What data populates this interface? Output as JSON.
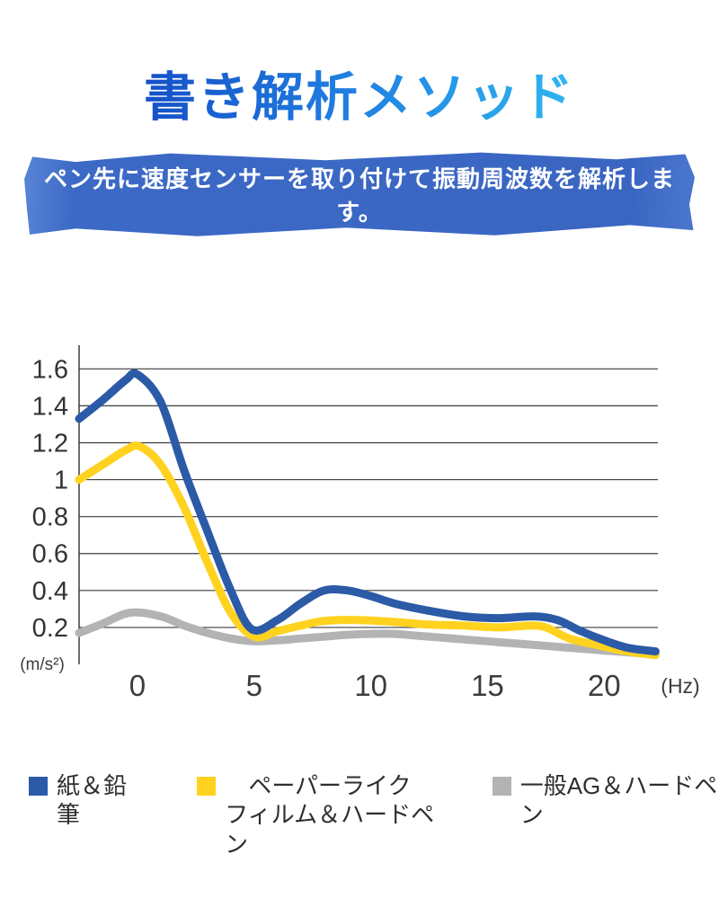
{
  "header": {
    "title": "書き解析メソッド",
    "subtitle": "ペン先に速度センサーを取り付けて振動周波数を解析します。"
  },
  "chart_data": {
    "type": "line",
    "title": "",
    "xlabel": "(Hz)",
    "ylabel": "(m/s²)",
    "x_ticks": [
      0,
      5,
      10,
      15,
      20
    ],
    "y_ticks": [
      1.6,
      1.4,
      1.2,
      1,
      0.8,
      0.6,
      0.4,
      0.2
    ],
    "xlim": [
      -2.5,
      22.3
    ],
    "ylim": [
      0,
      1.66
    ],
    "grid": true,
    "grid_color": "#3d3d3d",
    "legend_position": "bottom",
    "series": [
      {
        "name": "紙＆鉛筆",
        "key": "paper-pencil",
        "color": "#2b5aa7",
        "x": [
          -2.5,
          -1.5,
          -0.5,
          0,
          1,
          2,
          3,
          4,
          4.9,
          6,
          7,
          8,
          9,
          10,
          11,
          12.5,
          14,
          15.5,
          17,
          18,
          19,
          20,
          21,
          22.2
        ],
        "values": [
          1.33,
          1.43,
          1.54,
          1.57,
          1.42,
          1.05,
          0.72,
          0.4,
          0.19,
          0.24,
          0.33,
          0.4,
          0.4,
          0.37,
          0.33,
          0.29,
          0.26,
          0.25,
          0.26,
          0.24,
          0.18,
          0.13,
          0.09,
          0.07
        ]
      },
      {
        "name": "ペーパーライク フィルム＆ハードペン",
        "key": "paperlike-film",
        "color": "#ffd21f",
        "x": [
          -2.5,
          -1.5,
          -0.5,
          0.1,
          1,
          2,
          3,
          4,
          5,
          6,
          7,
          8,
          9.5,
          11,
          12.5,
          14,
          15.5,
          16.8,
          17.5,
          18.5,
          19.5,
          21,
          22.2
        ],
        "values": [
          1.0,
          1.08,
          1.16,
          1.18,
          1.08,
          0.85,
          0.55,
          0.28,
          0.15,
          0.18,
          0.21,
          0.235,
          0.24,
          0.23,
          0.215,
          0.21,
          0.2,
          0.21,
          0.2,
          0.14,
          0.11,
          0.07,
          0.05
        ]
      },
      {
        "name": "一般AG＆ハードペン",
        "key": "general-ag",
        "color": "#b3b3b3",
        "x": [
          -2.5,
          -1.5,
          -0.3,
          1,
          2,
          3,
          4,
          5,
          6,
          7,
          8,
          9,
          10,
          11,
          12,
          13,
          14,
          15,
          16,
          17,
          18,
          19,
          20,
          21,
          22.2
        ],
        "values": [
          0.17,
          0.22,
          0.28,
          0.26,
          0.21,
          0.17,
          0.14,
          0.125,
          0.13,
          0.14,
          0.15,
          0.16,
          0.165,
          0.165,
          0.155,
          0.145,
          0.135,
          0.125,
          0.115,
          0.105,
          0.095,
          0.085,
          0.075,
          0.065,
          0.055
        ]
      }
    ]
  },
  "legend": {
    "items": [
      {
        "color": "#2b5aa7",
        "lines": [
          "紙＆鉛筆"
        ]
      },
      {
        "color": "#ffd21f",
        "lines": [
          "ペーパーライク",
          "フィルム＆ハードペン"
        ]
      },
      {
        "color": "#b3b3b3",
        "lines": [
          "一般AG＆ハードペン"
        ]
      }
    ]
  }
}
